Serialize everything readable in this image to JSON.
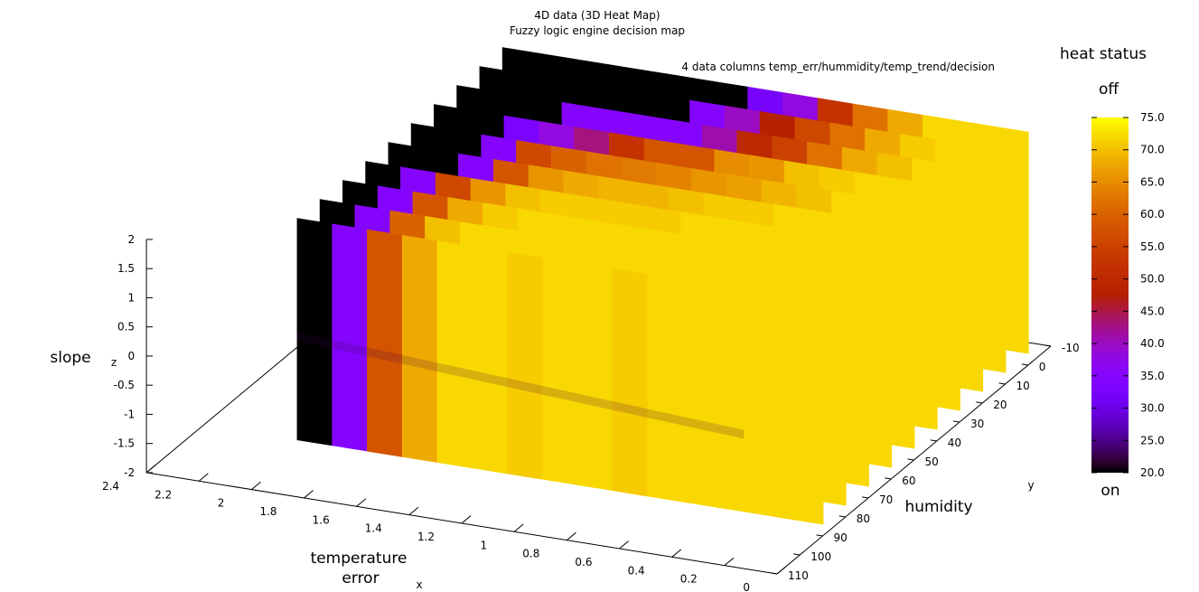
{
  "chart_data": {
    "type": "heatmap",
    "title": "4D data (3D Heat Map)",
    "subtitle": "Fuzzy logic engine decision map",
    "annotation": "4 data columns temp_err/hummidity/temp_trend/decision",
    "xlabel": "temperature\nerror",
    "x_axis_letter": "x",
    "ylabel": "humidity",
    "y_axis_letter": "y",
    "zlabel": "slope",
    "z_axis_letter": "z",
    "xlim": [
      0,
      2.4
    ],
    "ylim": [
      -10,
      110
    ],
    "zlim": [
      -2,
      2
    ],
    "x_ticks": [
      "2.4",
      "2.2",
      "2",
      "1.8",
      "1.6",
      "1.4",
      "1.2",
      "1",
      "0.8",
      "0.6",
      "0.4",
      "0.2",
      "0"
    ],
    "y_ticks": [
      "-10",
      "0",
      "10",
      "20",
      "30",
      "40",
      "50",
      "60",
      "70",
      "80",
      "90",
      "100",
      "110"
    ],
    "z_ticks": [
      "2",
      "1.5",
      "1",
      "0.5",
      "0",
      "-0.5",
      "-1",
      "-1.5",
      "-2"
    ],
    "colorbar": {
      "title": "heat status",
      "top_label": "off",
      "bottom_label": "on",
      "range": [
        20,
        75
      ],
      "ticks": [
        "75.0",
        "70.0",
        "65.0",
        "60.0",
        "55.0",
        "50.0",
        "45.0",
        "40.0",
        "35.0",
        "30.0",
        "25.0",
        "20.0"
      ],
      "palette": "gnuplot-rgbformulae-7-5-15"
    },
    "slices": [
      {
        "humidity": 0,
        "x_start": 2.0,
        "decision": [
          20,
          20,
          20,
          20,
          20,
          20,
          20,
          32,
          38,
          52,
          62,
          68,
          72,
          72,
          72
        ]
      },
      {
        "humidity": 10,
        "x_start": 2.0,
        "decision": [
          20,
          20,
          20,
          20,
          20,
          20,
          35,
          40,
          48,
          56,
          62,
          68,
          71,
          72,
          72
        ]
      },
      {
        "humidity": 20,
        "x_start": 2.0,
        "decision": [
          20,
          20,
          20,
          35,
          35,
          35,
          35,
          41,
          50,
          55,
          62,
          68,
          70,
          72,
          72
        ]
      },
      {
        "humidity": 30,
        "x_start": 2.0,
        "decision": [
          20,
          20,
          33,
          38,
          43,
          52,
          58,
          58,
          65,
          66,
          70,
          71,
          72,
          72,
          72
        ]
      },
      {
        "humidity": 40,
        "x_start": 2.0,
        "decision": [
          20,
          20,
          35,
          56,
          60,
          62,
          63,
          64,
          66,
          67,
          69,
          70,
          72,
          72,
          72
        ]
      },
      {
        "humidity": 50,
        "x_start": 2.0,
        "decision": [
          20,
          20,
          35,
          58,
          66,
          68,
          69,
          69,
          70,
          71,
          71,
          72,
          72,
          72,
          72
        ]
      },
      {
        "humidity": 60,
        "x_start": 2.0,
        "decision": [
          20,
          35,
          56,
          66,
          70,
          71,
          71,
          71,
          71,
          72,
          72,
          72,
          72,
          72,
          72
        ]
      },
      {
        "humidity": 70,
        "x_start": 2.0,
        "decision": [
          20,
          35,
          58,
          68,
          71,
          72,
          72,
          72,
          72,
          72,
          72,
          72,
          72,
          72,
          72
        ]
      },
      {
        "humidity": 80,
        "x_start": 2.0,
        "decision": [
          20,
          35,
          60,
          70,
          72,
          72,
          72,
          72,
          72,
          72,
          72,
          72,
          72,
          72,
          72
        ]
      },
      {
        "humidity": 90,
        "x_start": 2.0,
        "decision": [
          20,
          35,
          58,
          68,
          72,
          72,
          71,
          72,
          72,
          71,
          72,
          72,
          72,
          72,
          72
        ]
      }
    ]
  }
}
